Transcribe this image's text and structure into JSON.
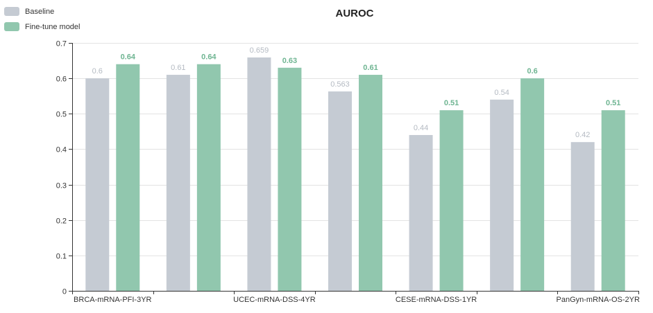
{
  "chart_data": {
    "type": "bar",
    "title": "AUROC",
    "categories": [
      "BRCA-mRNA-PFI-3YR",
      "",
      "UCEC-mRNA-DSS-4YR",
      "",
      "CESE-mRNA-DSS-1YR",
      "",
      "PanGyn-mRNA-OS-2YR"
    ],
    "series": [
      {
        "name": "Baseline",
        "color": "#c5cbd3",
        "label_color": "#b4bac2",
        "values": [
          0.6,
          0.61,
          0.659,
          0.563,
          0.44,
          0.54,
          0.42
        ],
        "labels": [
          "0.6",
          "0.61",
          "0.659",
          "0.563",
          "0.44",
          "0.54",
          "0.42"
        ]
      },
      {
        "name": "Fine-tune model",
        "color": "#91c7ae",
        "label_color": "#6fb592",
        "values": [
          0.64,
          0.64,
          0.63,
          0.61,
          0.51,
          0.6,
          0.51
        ],
        "labels": [
          "0.64",
          "0.64",
          "0.63",
          "0.61",
          "0.51",
          "0.6",
          "0.51"
        ]
      }
    ],
    "ylim": [
      0,
      0.7
    ],
    "yticks": [
      "0",
      "0.1",
      "0.2",
      "0.3",
      "0.4",
      "0.5",
      "0.6",
      "0.7"
    ],
    "grid": true,
    "legend": "top-left"
  }
}
